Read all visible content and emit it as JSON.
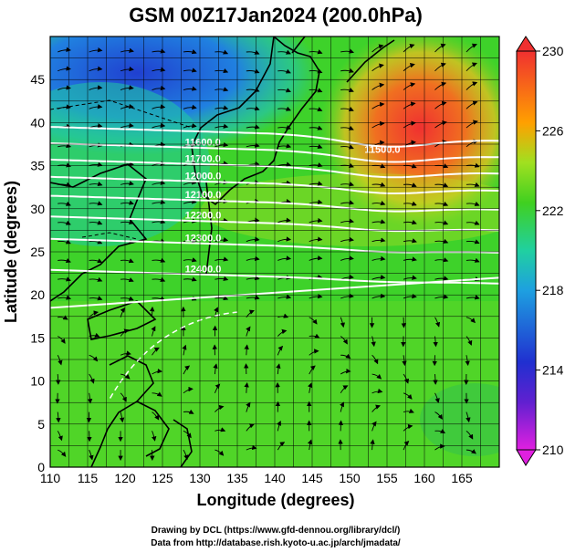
{
  "title": "GSM 00Z17Jan2024 (200.0hPa)",
  "chart_data": {
    "type": "heatmap",
    "xlabel": "Longitude (degrees)",
    "ylabel": "Latitude  (degrees)",
    "xlim": [
      110,
      170
    ],
    "ylim": [
      0,
      50
    ],
    "x_ticks": [
      "110",
      "115",
      "120",
      "125",
      "130",
      "135",
      "140",
      "145",
      "150",
      "155",
      "160",
      "165"
    ],
    "y_ticks": [
      "0",
      "5",
      "10",
      "15",
      "20",
      "25",
      "30",
      "35",
      "40",
      "45"
    ],
    "grid": true,
    "colorbar": {
      "range": [
        210,
        230
      ],
      "ticks": [
        "210",
        "214",
        "218",
        "222",
        "226",
        "230"
      ],
      "colors": [
        "#e020e0",
        "#2020d0",
        "#1ea0e0",
        "#20d020",
        "#ffa000",
        "#f03030"
      ]
    },
    "contours": [
      {
        "label": "11500.0",
        "lat": 37.6
      },
      {
        "label": "11600.0",
        "lat": 35.7
      },
      {
        "label": "11700.0",
        "lat": 33.8
      },
      {
        "label": "12000.0",
        "lat": 31.8
      },
      {
        "label": "12100.0",
        "lat": 29.6
      },
      {
        "label": "12200.0",
        "lat": 27.2
      },
      {
        "label": "12300.0",
        "lat": 24.6
      },
      {
        "label": "12400.0",
        "lat": 21.0
      }
    ]
  },
  "credits": {
    "line1": "Drawing by DCL (https://www.gfd-dennou.org/library/dcl/)",
    "line2": "Data from http://database.rish.kyoto-u.ac.jp/arch/jmadata/"
  }
}
